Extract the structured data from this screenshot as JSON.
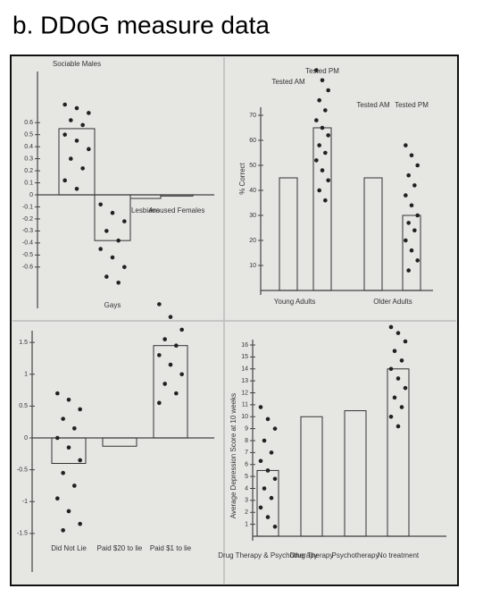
{
  "title": "b. DDoG measure data",
  "chart_data": [
    {
      "type": "bar",
      "categories": [
        "Sociable Males",
        "Gays",
        "Lesbians",
        "Aroused Females"
      ],
      "values": [
        0.55,
        -0.38,
        -0.03,
        -0.01
      ],
      "points": [
        [
          0.75,
          0.72,
          0.68,
          0.62,
          0.58,
          0.5,
          0.45,
          0.38,
          0.3,
          0.22,
          0.12,
          0.05
        ],
        [
          -0.08,
          -0.15,
          -0.22,
          -0.3,
          -0.38,
          -0.45,
          -0.52,
          -0.6,
          -0.68,
          -0.73
        ],
        [],
        []
      ],
      "ylim": [
        -0.75,
        0.75
      ],
      "yticks": [
        0.6,
        0.5,
        0.4,
        0.3,
        0.2,
        0.1,
        0,
        -0.1,
        -0.2,
        -0.3,
        -0.4,
        -0.5,
        -0.6
      ]
    },
    {
      "type": "bar",
      "y_label": "% Correct",
      "group_labels": [
        "Young Adults",
        "Older Adults"
      ],
      "categories": [
        "Tested AM",
        "Tested PM",
        "Tested AM",
        "Tested PM"
      ],
      "values": [
        45,
        65,
        45,
        30
      ],
      "points": [
        [],
        [
          88,
          84,
          80,
          76,
          72,
          68,
          65,
          62,
          58,
          55,
          52,
          48,
          44,
          40,
          36
        ],
        [],
        [
          58,
          54,
          50,
          46,
          42,
          38,
          34,
          30,
          27,
          24,
          20,
          16,
          12,
          8
        ]
      ],
      "ylim": [
        0,
        75
      ],
      "yticks": [
        10,
        20,
        30,
        40,
        50,
        60,
        70
      ]
    },
    {
      "type": "bar",
      "categories": [
        "Did Not Lie",
        "Paid $20 to lie",
        "Paid $1 to lie"
      ],
      "values": [
        -0.4,
        -0.13,
        1.45
      ],
      "points": [
        [
          0.7,
          0.6,
          0.45,
          0.3,
          0.15,
          0,
          -0.15,
          -0.35,
          -0.55,
          -0.75,
          -0.95,
          -1.15,
          -1.35,
          -1.45
        ],
        [],
        [
          2.1,
          1.9,
          1.7,
          1.55,
          1.45,
          1.3,
          1.15,
          1.0,
          0.85,
          0.7,
          0.55
        ]
      ],
      "ylim": [
        -1.6,
        1.6
      ],
      "yticks": [
        1.5,
        1,
        0.5,
        0,
        -0.5,
        -1,
        -1.5
      ]
    },
    {
      "type": "bar",
      "y_label": "Average Depression Score at 10 weeks",
      "categories": [
        "Drug Therapy & Psychotherapy",
        "Drug Therapy",
        "Psychotherapy",
        "No treatment"
      ],
      "values": [
        5.5,
        10,
        10.5,
        14
      ],
      "points": [
        [
          10.8,
          9.8,
          9,
          8,
          7,
          6.3,
          5.5,
          4.8,
          4,
          3.2,
          2.4,
          1.6,
          0.8
        ],
        [],
        [],
        [
          17.5,
          17,
          16.3,
          15.5,
          14.7,
          14,
          13.2,
          12.4,
          11.6,
          10.8,
          10,
          9.2
        ]
      ],
      "ylim": [
        0,
        16
      ],
      "yticks": [
        1,
        2,
        3,
        4,
        5,
        6,
        7,
        8,
        9,
        10,
        11,
        12,
        13,
        14,
        15,
        16
      ]
    }
  ]
}
